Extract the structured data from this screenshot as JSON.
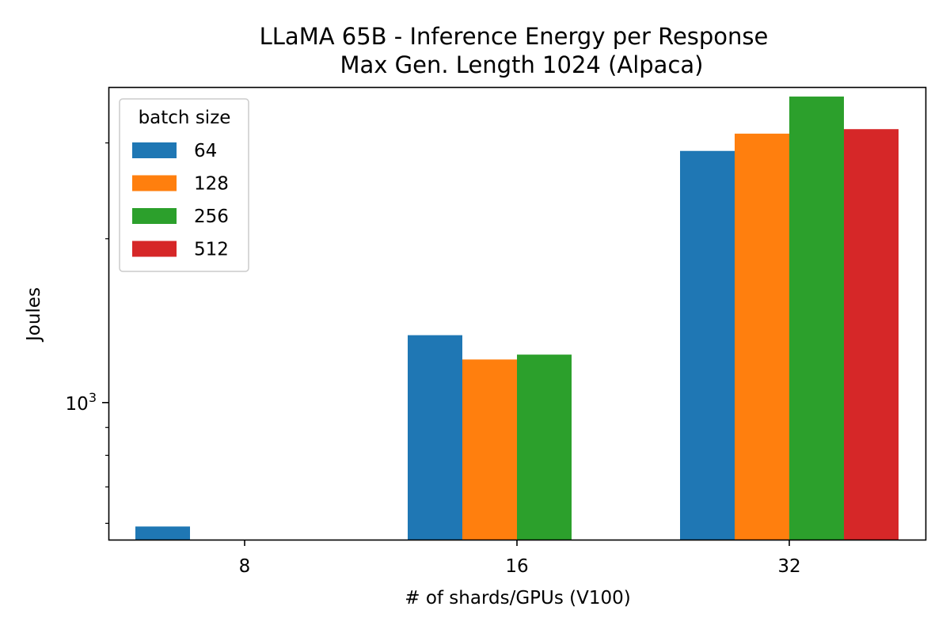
{
  "chart_data": {
    "type": "bar",
    "title": "LLaMA 65B - Inference Energy per Response",
    "subtitle": "Max Gen. Length 1024 (Alpaca)",
    "xlabel": "# of shards/GPUs (V100)",
    "ylabel": "Joules",
    "yscale": "log",
    "ylim": [
      560,
      3800
    ],
    "categories": [
      "8",
      "16",
      "32"
    ],
    "y_major_ticks": [
      {
        "value": 1000,
        "base": "10",
        "exp": "3"
      }
    ],
    "y_minor_ticks": [
      600,
      700,
      800,
      900,
      2000,
      3000
    ],
    "legend": {
      "title": "batch size",
      "position": "top-left"
    },
    "series": [
      {
        "name": "64",
        "color": "#1f77b4",
        "values": [
          592,
          1330,
          2900
        ]
      },
      {
        "name": "128",
        "color": "#ff7f0e",
        "values": [
          null,
          1200,
          3120
        ]
      },
      {
        "name": "256",
        "color": "#2ca02c",
        "values": [
          null,
          1225,
          3650
        ]
      },
      {
        "name": "512",
        "color": "#d62728",
        "values": [
          null,
          null,
          3180
        ]
      }
    ]
  }
}
